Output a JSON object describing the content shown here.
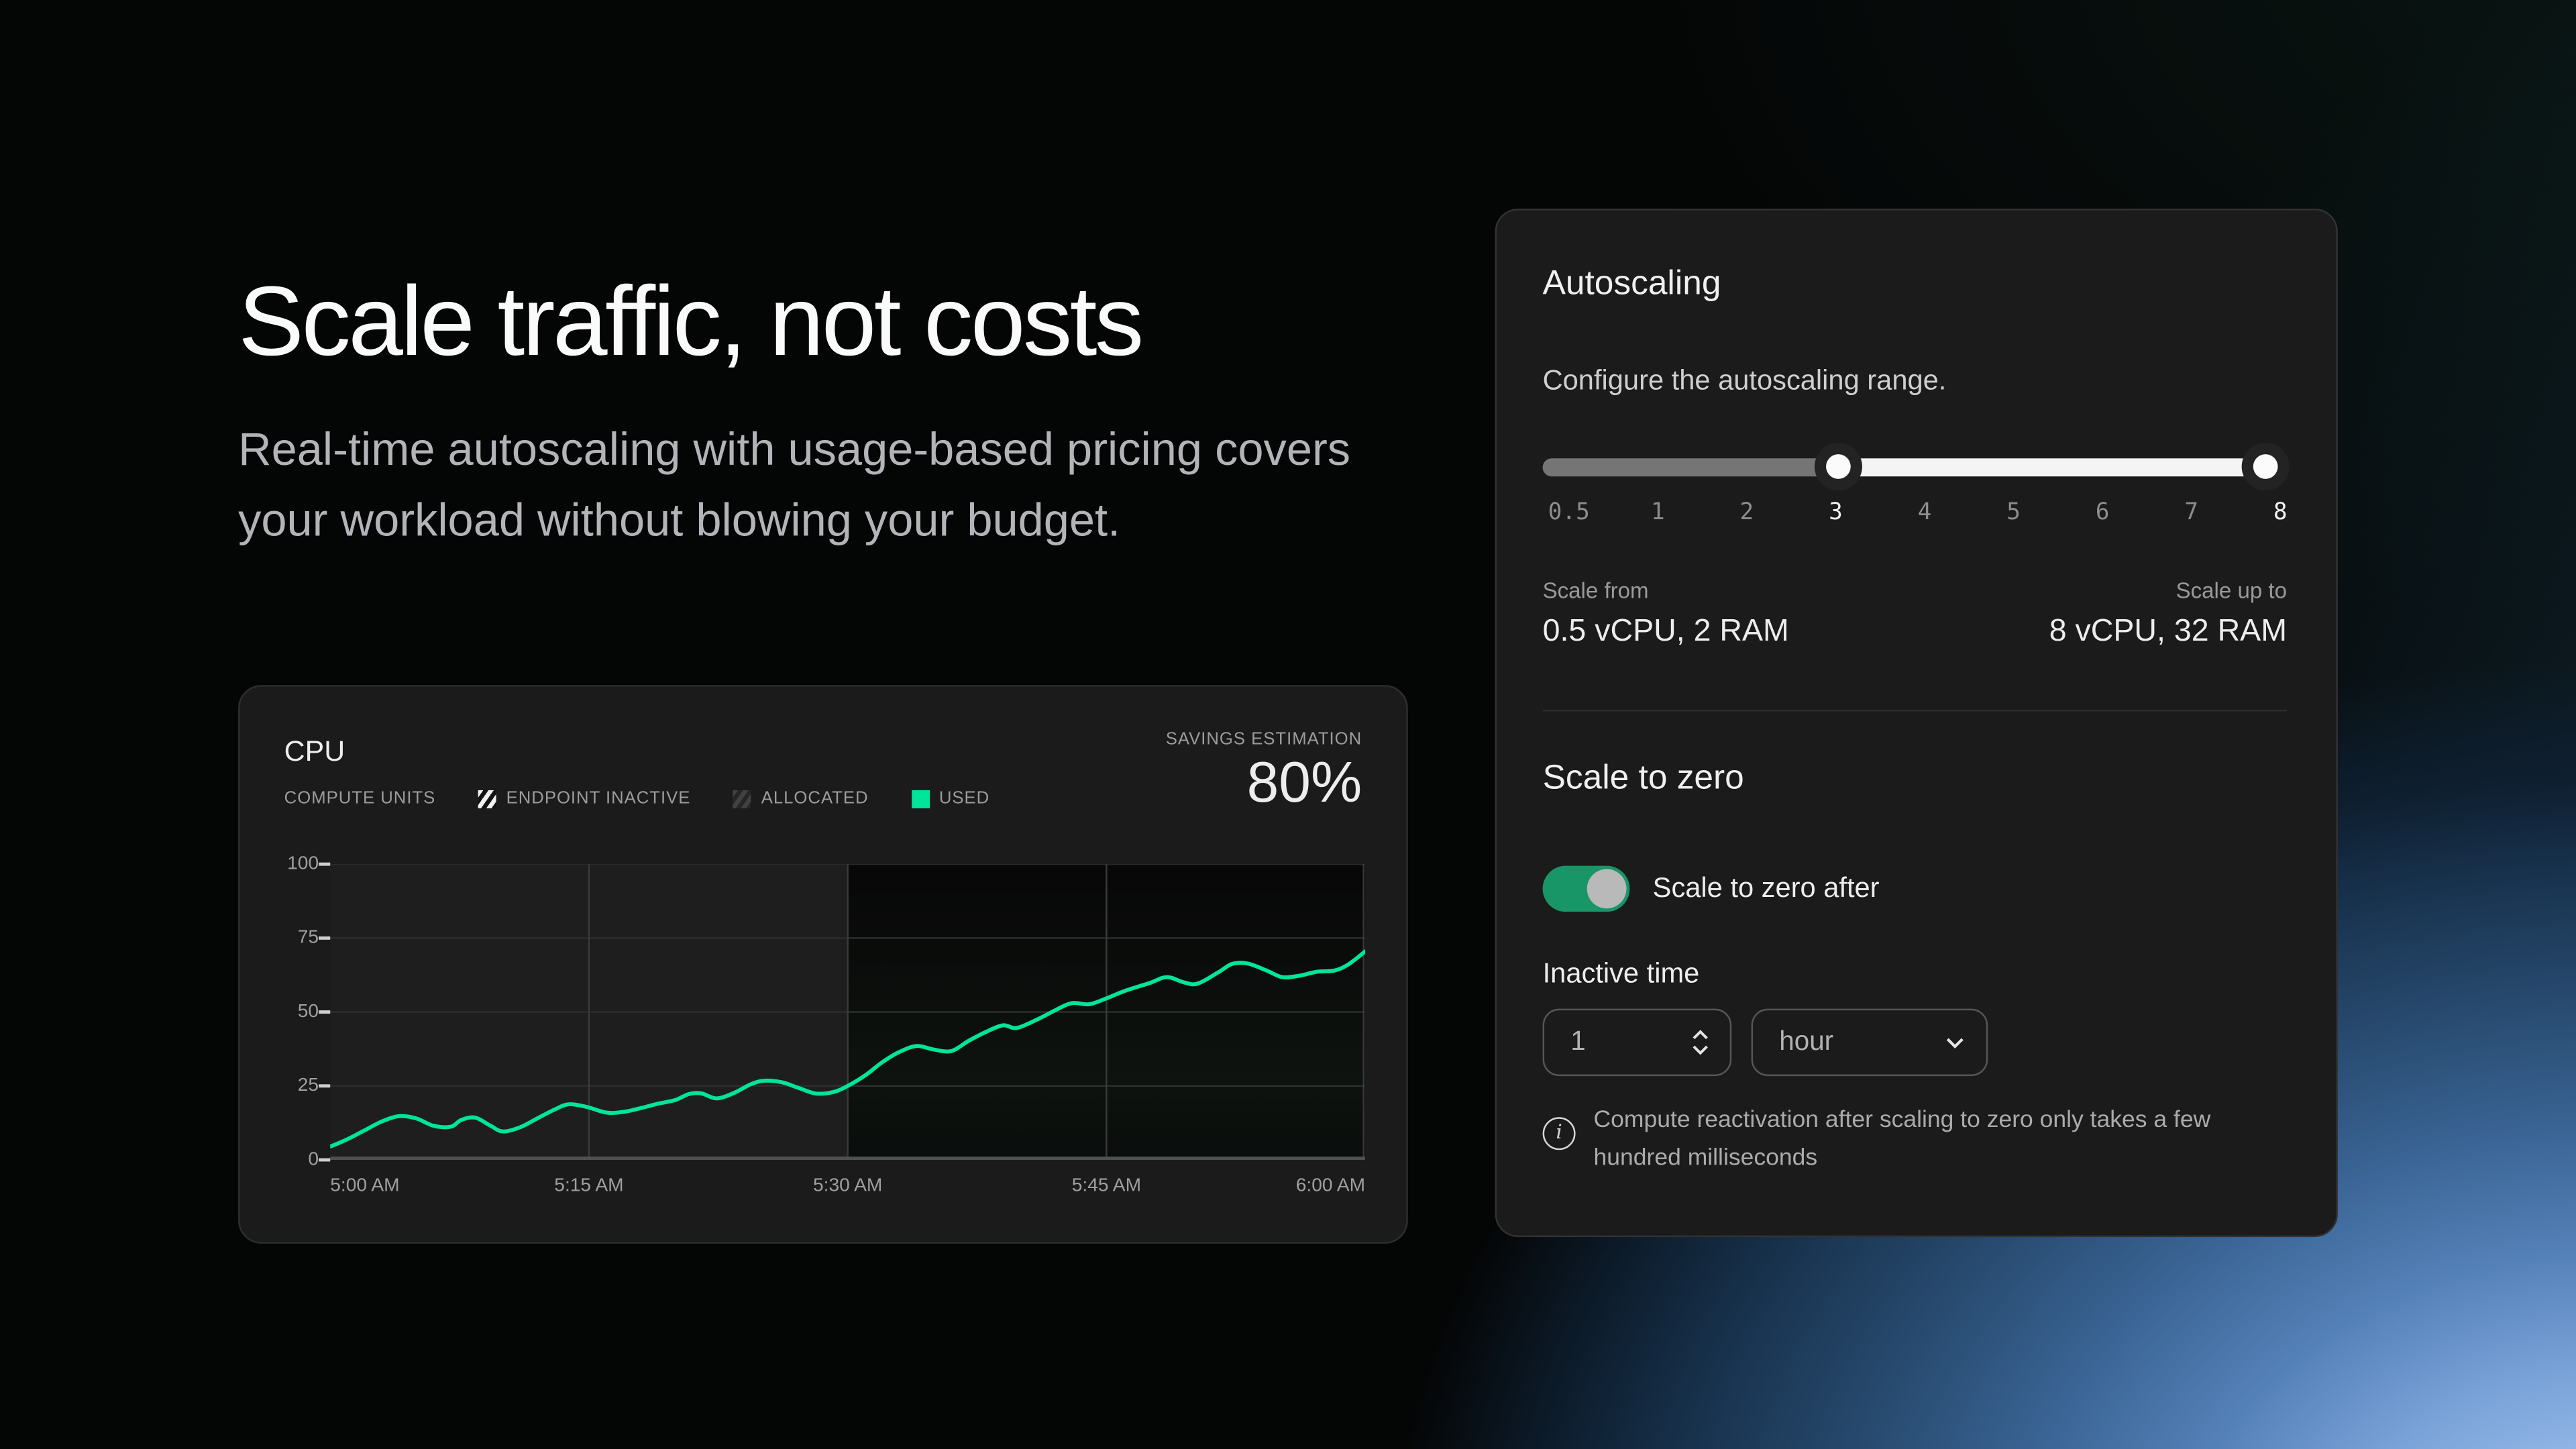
{
  "hero": {
    "title": "Scale traffic, not costs",
    "subtitle": "Real-time autoscaling with usage-based pricing covers your workload without blowing your budget."
  },
  "chart_card": {
    "title": "CPU",
    "legend": [
      {
        "label": "COMPUTE UNITS",
        "icon": "none"
      },
      {
        "label": "ENDPOINT INACTIVE",
        "icon": "hatched-square"
      },
      {
        "label": "ALLOCATED",
        "icon": "dim-square"
      },
      {
        "label": "USED",
        "icon": "green-square"
      }
    ],
    "savings_label": "SAVINGS ESTIMATION",
    "savings_value": "80%"
  },
  "chart_data": {
    "type": "line",
    "title": "CPU compute units over time",
    "xlabel": "",
    "ylabel": "",
    "ylim": [
      0,
      100
    ],
    "x_range_minutes": [
      0,
      60
    ],
    "y_ticks": [
      100,
      75,
      50,
      25,
      0
    ],
    "x_ticks": [
      "5:00 AM",
      "5:15 AM",
      "5:30 AM",
      "5:45 AM",
      "6:00 AM"
    ],
    "x_tick_minutes": [
      0,
      15,
      30,
      45,
      60
    ],
    "grid": true,
    "legend_position": "top-left",
    "dark_region_start_minute": 30,
    "series": [
      {
        "name": "USED",
        "color": "#00e599",
        "points": [
          [
            0,
            4.5
          ],
          [
            1,
            7
          ],
          [
            2,
            10
          ],
          [
            3,
            13
          ],
          [
            4,
            14.8
          ],
          [
            5,
            14
          ],
          [
            6,
            11.5
          ],
          [
            7,
            11.2
          ],
          [
            7.6,
            13.5
          ],
          [
            8.4,
            14.3
          ],
          [
            9.3,
            11.5
          ],
          [
            10,
            9.6
          ],
          [
            11,
            11
          ],
          [
            12,
            14
          ],
          [
            13,
            17
          ],
          [
            13.8,
            18.8
          ],
          [
            14.8,
            18
          ],
          [
            16,
            16
          ],
          [
            17,
            16.2
          ],
          [
            18,
            17.5
          ],
          [
            19,
            19
          ],
          [
            20,
            20.2
          ],
          [
            20.8,
            22.3
          ],
          [
            21.5,
            22.5
          ],
          [
            22.4,
            20.8
          ],
          [
            23.4,
            22.6
          ],
          [
            24.4,
            25.6
          ],
          [
            25.2,
            26.8
          ],
          [
            26.2,
            26.2
          ],
          [
            27.2,
            24.2
          ],
          [
            28.2,
            22.4
          ],
          [
            29.2,
            23
          ],
          [
            30,
            25
          ],
          [
            31,
            28.5
          ],
          [
            32,
            33
          ],
          [
            33,
            36.5
          ],
          [
            34,
            38.5
          ],
          [
            35,
            37.3
          ],
          [
            36,
            36.8
          ],
          [
            37,
            40.2
          ],
          [
            38,
            43.2
          ],
          [
            39,
            45.5
          ],
          [
            39.8,
            44.6
          ],
          [
            41,
            47.5
          ],
          [
            42,
            50.5
          ],
          [
            43,
            53
          ],
          [
            44,
            52.6
          ],
          [
            45,
            54.6
          ],
          [
            46,
            57
          ],
          [
            47.5,
            59.8
          ],
          [
            48.5,
            61.8
          ],
          [
            49.5,
            60
          ],
          [
            50.3,
            59.6
          ],
          [
            51.5,
            63.5
          ],
          [
            52.3,
            66.3
          ],
          [
            53.2,
            66.4
          ],
          [
            54.3,
            64
          ],
          [
            55.2,
            61.8
          ],
          [
            56.2,
            62.3
          ],
          [
            57.2,
            63.6
          ],
          [
            58.2,
            64
          ],
          [
            59,
            66
          ],
          [
            60,
            70.5
          ]
        ]
      }
    ]
  },
  "autoscaling": {
    "title": "Autoscaling",
    "description": "Configure the autoscaling range.",
    "slider": {
      "labels": [
        "0.5",
        "1",
        "2",
        "3",
        "4",
        "5",
        "6",
        "7",
        "8"
      ],
      "active_labels": [
        "3",
        "8"
      ],
      "range_start_percent": 41,
      "range_end_percent": 100
    },
    "scale_from_label": "Scale from",
    "scale_from_value": "0.5 vCPU, 2 RAM",
    "scale_up_label": "Scale up to",
    "scale_up_value": "8 vCPU, 32 RAM",
    "scale_to_zero": {
      "title": "Scale to zero",
      "toggle_label": "Scale to zero after",
      "toggle_on": true,
      "inactive_time_label": "Inactive time",
      "inactive_time_value": "1",
      "inactive_time_unit": "hour",
      "note": "Compute reactivation after scaling to zero only takes a few hundred milliseconds"
    }
  },
  "colors": {
    "accent_green": "#00e599",
    "toggle_green": "#189667",
    "card_bg": "#1b1b1b",
    "glow_blue": "#9dbfec"
  }
}
